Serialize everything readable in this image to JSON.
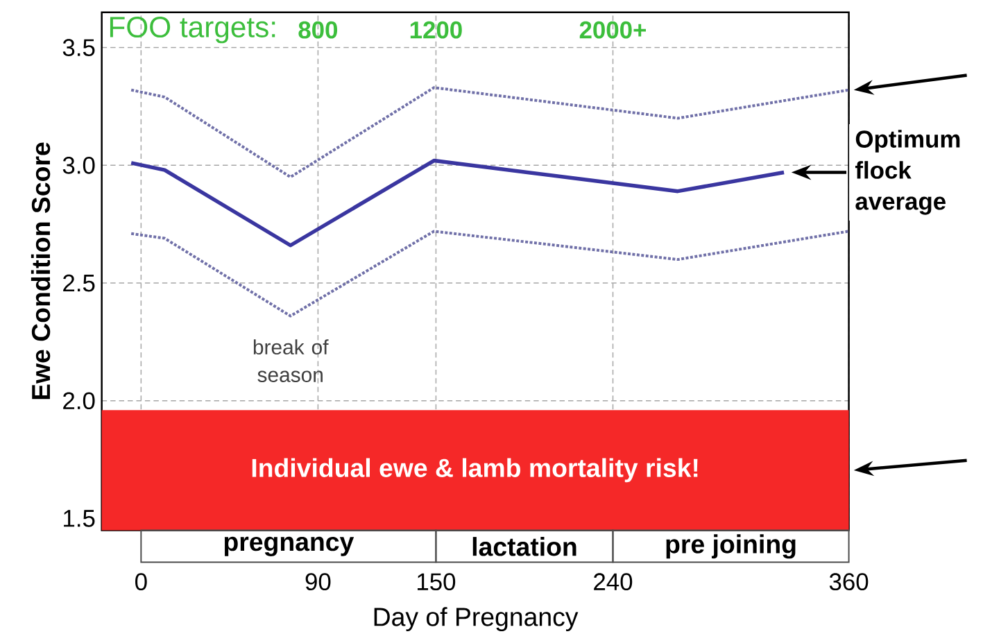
{
  "chart_data": {
    "type": "line",
    "xlabel": "Day of Pregnancy",
    "ylabel": "Ewe Condition Score",
    "xlim": [
      -20,
      360
    ],
    "xticks": [
      0,
      90,
      150,
      240,
      360
    ],
    "ylim": [
      1.45,
      3.65
    ],
    "yticks": [
      {
        "value": 1.5,
        "label": "1.5"
      },
      {
        "value": 2.0,
        "label": "2.0"
      },
      {
        "value": 2.5,
        "label": "2.5"
      },
      {
        "value": 3.0,
        "label": "3.0"
      },
      {
        "value": 3.5,
        "label": "3.5"
      }
    ],
    "grid": true,
    "marker": "none",
    "series": [
      {
        "color": "#7070a8",
        "line_style": "dotted",
        "x": [
          -5,
          12,
          76,
          149,
          273,
          360
        ],
        "values": [
          3.32,
          3.29,
          2.95,
          3.33,
          3.2,
          3.32
        ]
      },
      {
        "color": "#3a36a0",
        "line_style": "solid",
        "x": [
          -5,
          12,
          76,
          149,
          273,
          327
        ],
        "values": [
          3.01,
          2.98,
          2.66,
          3.02,
          2.89,
          2.97
        ]
      },
      {
        "color": "#7070a8",
        "line_style": "dotted",
        "x": [
          -5,
          12,
          76,
          149,
          273,
          360
        ],
        "values": [
          2.71,
          2.69,
          2.36,
          2.72,
          2.6,
          2.72
        ]
      }
    ],
    "bands": [
      {
        "axis": "y",
        "from": 1.45,
        "to": 1.96,
        "label": "Individual ewe & lamb mortality risk!",
        "color": "#f52828"
      }
    ],
    "annotations": [
      "FOO targets:",
      "800",
      "1200",
      "2000+",
      "break of season",
      "Optimum flock average",
      "pregnancy",
      "lactation",
      "pre joining"
    ]
  }
}
